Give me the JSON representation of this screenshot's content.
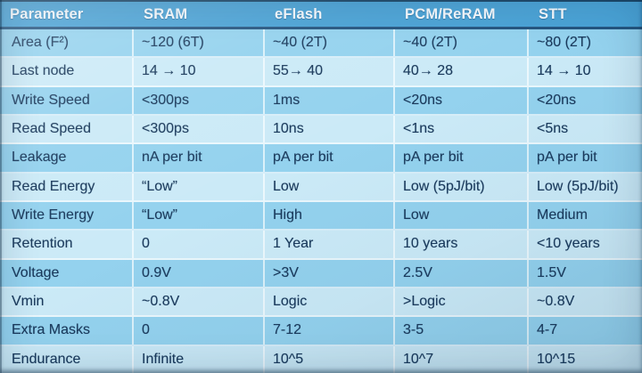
{
  "chart_data": {
    "type": "table",
    "columns": [
      "Parameter",
      "SRAM",
      "eFlash",
      "PCM/ReRAM",
      "STT"
    ],
    "rows": [
      {
        "parameter": "Area (F²)",
        "values": [
          "~120 (6T)",
          "~40 (2T)",
          "~40 (2T)",
          "~80 (2T)"
        ]
      },
      {
        "parameter": "Last node",
        "values": [
          "14 → 10",
          "55→ 40",
          "40→ 28",
          "14 → 10"
        ]
      },
      {
        "parameter": "Write Speed",
        "values": [
          "<300ps",
          "1ms",
          "<20ns",
          "<20ns"
        ]
      },
      {
        "parameter": "Read Speed",
        "values": [
          "<300ps",
          "10ns",
          "<1ns",
          "<5ns"
        ]
      },
      {
        "parameter": "Leakage",
        "values": [
          "nA per bit",
          "pA per bit",
          "pA per bit",
          "pA per bit"
        ]
      },
      {
        "parameter": "Read Energy",
        "values": [
          "“Low”",
          "Low",
          "Low (5pJ/bit)",
          "Low (5pJ/bit)"
        ]
      },
      {
        "parameter": "Write Energy",
        "values": [
          "“Low”",
          "High",
          "Low",
          "Medium"
        ]
      },
      {
        "parameter": "Retention",
        "values": [
          "0",
          "1 Year",
          "10 years",
          "<10 years"
        ]
      },
      {
        "parameter": "Voltage",
        "values": [
          "0.9V",
          ">3V",
          "2.5V",
          "1.5V"
        ]
      },
      {
        "parameter": "Vmin",
        "values": [
          "~0.8V",
          "Logic",
          ">Logic",
          "~0.8V"
        ]
      },
      {
        "parameter": "Extra Masks",
        "values": [
          "0",
          "7-12",
          "3-5",
          "4-7"
        ]
      },
      {
        "parameter": "Endurance",
        "values": [
          "Infinite",
          "10^5",
          "10^7",
          "10^15"
        ]
      }
    ],
    "layout": {
      "striped": true,
      "first_stripe": "dark",
      "grid": "light-separators"
    }
  },
  "theme": {
    "header_bg": "#4AA3D6",
    "header_text": "#F7FBFE",
    "header_underline": "#24557F",
    "row_dark": "#94D2EE",
    "row_light": "#CBEAF7",
    "cell_text": "#1A3A5C"
  }
}
